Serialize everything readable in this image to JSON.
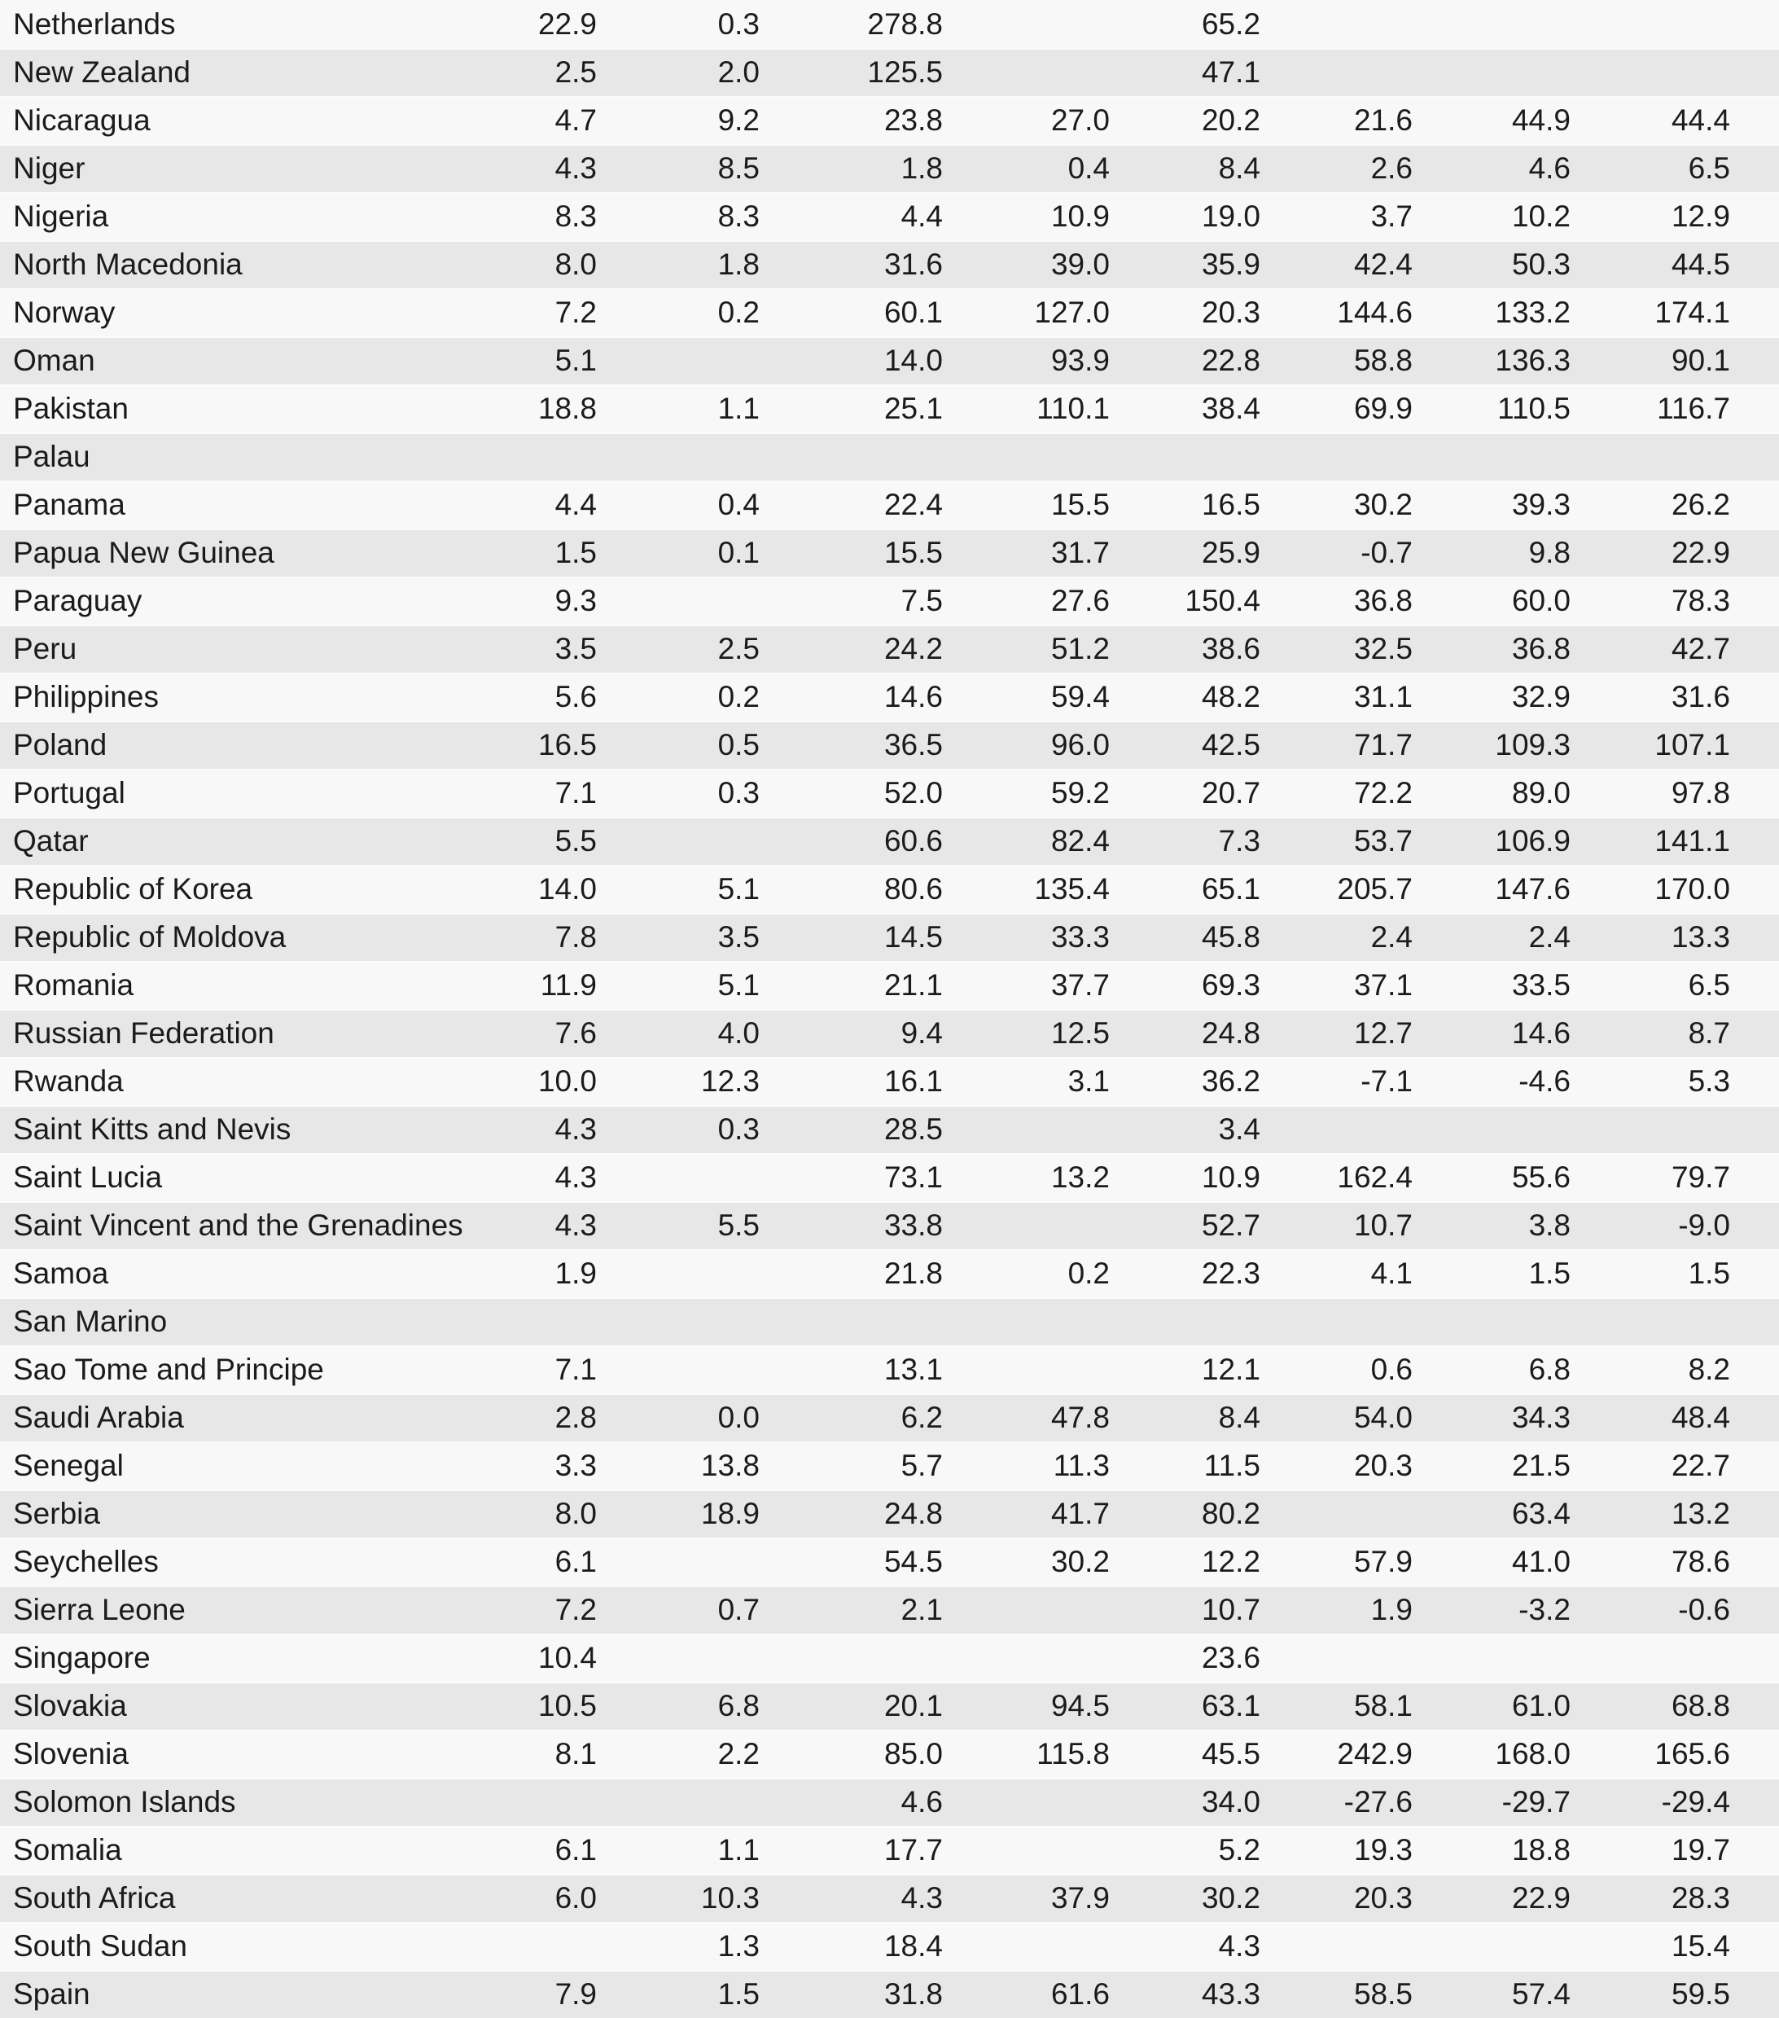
{
  "colors": {
    "row_light": "#f8f8f8",
    "row_gray": "#e7e7e7",
    "separator": "#fbfbfb",
    "text": "#1b1b1b",
    "background": "#ffffff"
  },
  "table": {
    "columns": 8,
    "rows": [
      {
        "country": "Netherlands",
        "values": [
          "22.9",
          "0.3",
          "278.8",
          "",
          "65.2",
          "",
          "",
          ""
        ]
      },
      {
        "country": "New Zealand",
        "values": [
          "2.5",
          "2.0",
          "125.5",
          "",
          "47.1",
          "",
          "",
          ""
        ]
      },
      {
        "country": "Nicaragua",
        "values": [
          "4.7",
          "9.2",
          "23.8",
          "27.0",
          "20.2",
          "21.6",
          "44.9",
          "44.4"
        ]
      },
      {
        "country": "Niger",
        "values": [
          "4.3",
          "8.5",
          "1.8",
          "0.4",
          "8.4",
          "2.6",
          "4.6",
          "6.5"
        ]
      },
      {
        "country": "Nigeria",
        "values": [
          "8.3",
          "8.3",
          "4.4",
          "10.9",
          "19.0",
          "3.7",
          "10.2",
          "12.9"
        ]
      },
      {
        "country": "North Macedonia",
        "values": [
          "8.0",
          "1.8",
          "31.6",
          "39.0",
          "35.9",
          "42.4",
          "50.3",
          "44.5"
        ]
      },
      {
        "country": "Norway",
        "values": [
          "7.2",
          "0.2",
          "60.1",
          "127.0",
          "20.3",
          "144.6",
          "133.2",
          "174.1"
        ]
      },
      {
        "country": "Oman",
        "values": [
          "5.1",
          "",
          "14.0",
          "93.9",
          "22.8",
          "58.8",
          "136.3",
          "90.1"
        ]
      },
      {
        "country": "Pakistan",
        "values": [
          "18.8",
          "1.1",
          "25.1",
          "110.1",
          "38.4",
          "69.9",
          "110.5",
          "116.7"
        ]
      },
      {
        "country": "Palau",
        "values": [
          "",
          "",
          "",
          "",
          "",
          "",
          "",
          ""
        ]
      },
      {
        "country": "Panama",
        "values": [
          "4.4",
          "0.4",
          "22.4",
          "15.5",
          "16.5",
          "30.2",
          "39.3",
          "26.2"
        ]
      },
      {
        "country": "Papua New Guinea",
        "values": [
          "1.5",
          "0.1",
          "15.5",
          "31.7",
          "25.9",
          "-0.7",
          "9.8",
          "22.9"
        ]
      },
      {
        "country": "Paraguay",
        "values": [
          "9.3",
          "",
          "7.5",
          "27.6",
          "150.4",
          "36.8",
          "60.0",
          "78.3"
        ]
      },
      {
        "country": "Peru",
        "values": [
          "3.5",
          "2.5",
          "24.2",
          "51.2",
          "38.6",
          "32.5",
          "36.8",
          "42.7"
        ]
      },
      {
        "country": "Philippines",
        "values": [
          "5.6",
          "0.2",
          "14.6",
          "59.4",
          "48.2",
          "31.1",
          "32.9",
          "31.6"
        ]
      },
      {
        "country": "Poland",
        "values": [
          "16.5",
          "0.5",
          "36.5",
          "96.0",
          "42.5",
          "71.7",
          "109.3",
          "107.1"
        ]
      },
      {
        "country": "Portugal",
        "values": [
          "7.1",
          "0.3",
          "52.0",
          "59.2",
          "20.7",
          "72.2",
          "89.0",
          "97.8"
        ]
      },
      {
        "country": "Qatar",
        "values": [
          "5.5",
          "",
          "60.6",
          "82.4",
          "7.3",
          "53.7",
          "106.9",
          "141.1"
        ]
      },
      {
        "country": "Republic of Korea",
        "values": [
          "14.0",
          "5.1",
          "80.6",
          "135.4",
          "65.1",
          "205.7",
          "147.6",
          "170.0"
        ]
      },
      {
        "country": "Republic of Moldova",
        "values": [
          "7.8",
          "3.5",
          "14.5",
          "33.3",
          "45.8",
          "2.4",
          "2.4",
          "13.3"
        ]
      },
      {
        "country": "Romania",
        "values": [
          "11.9",
          "5.1",
          "21.1",
          "37.7",
          "69.3",
          "37.1",
          "33.5",
          "6.5"
        ]
      },
      {
        "country": "Russian Federation",
        "values": [
          "7.6",
          "4.0",
          "9.4",
          "12.5",
          "24.8",
          "12.7",
          "14.6",
          "8.7"
        ]
      },
      {
        "country": "Rwanda",
        "values": [
          "10.0",
          "12.3",
          "16.1",
          "3.1",
          "36.2",
          "-7.1",
          "-4.6",
          "5.3"
        ]
      },
      {
        "country": "Saint Kitts and Nevis",
        "values": [
          "4.3",
          "0.3",
          "28.5",
          "",
          "3.4",
          "",
          "",
          ""
        ]
      },
      {
        "country": "Saint Lucia",
        "values": [
          "4.3",
          "",
          "73.1",
          "13.2",
          "10.9",
          "162.4",
          "55.6",
          "79.7"
        ]
      },
      {
        "country": "Saint Vincent and the Grenadines",
        "values": [
          "4.3",
          "5.5",
          "33.8",
          "",
          "52.7",
          "10.7",
          "3.8",
          "-9.0"
        ]
      },
      {
        "country": "Samoa",
        "values": [
          "1.9",
          "",
          "21.8",
          "0.2",
          "22.3",
          "4.1",
          "1.5",
          "1.5"
        ]
      },
      {
        "country": "San Marino",
        "values": [
          "",
          "",
          "",
          "",
          "",
          "",
          "",
          ""
        ]
      },
      {
        "country": "Sao Tome and Principe",
        "values": [
          "7.1",
          "",
          "13.1",
          "",
          "12.1",
          "0.6",
          "6.8",
          "8.2"
        ]
      },
      {
        "country": "Saudi Arabia",
        "values": [
          "2.8",
          "0.0",
          "6.2",
          "47.8",
          "8.4",
          "54.0",
          "34.3",
          "48.4"
        ]
      },
      {
        "country": "Senegal",
        "values": [
          "3.3",
          "13.8",
          "5.7",
          "11.3",
          "11.5",
          "20.3",
          "21.5",
          "22.7"
        ]
      },
      {
        "country": "Serbia",
        "values": [
          "8.0",
          "18.9",
          "24.8",
          "41.7",
          "80.2",
          "",
          "63.4",
          "13.2"
        ]
      },
      {
        "country": "Seychelles",
        "values": [
          "6.1",
          "",
          "54.5",
          "30.2",
          "12.2",
          "57.9",
          "41.0",
          "78.6"
        ]
      },
      {
        "country": "Sierra Leone",
        "values": [
          "7.2",
          "0.7",
          "2.1",
          "",
          "10.7",
          "1.9",
          "-3.2",
          "-0.6"
        ]
      },
      {
        "country": "Singapore",
        "values": [
          "10.4",
          "",
          "",
          "",
          "23.6",
          "",
          "",
          ""
        ]
      },
      {
        "country": "Slovakia",
        "values": [
          "10.5",
          "6.8",
          "20.1",
          "94.5",
          "63.1",
          "58.1",
          "61.0",
          "68.8"
        ]
      },
      {
        "country": "Slovenia",
        "values": [
          "8.1",
          "2.2",
          "85.0",
          "115.8",
          "45.5",
          "242.9",
          "168.0",
          "165.6"
        ]
      },
      {
        "country": "Solomon Islands",
        "values": [
          "",
          "",
          "4.6",
          "",
          "34.0",
          "-27.6",
          "-29.7",
          "-29.4"
        ]
      },
      {
        "country": "Somalia",
        "values": [
          "6.1",
          "1.1",
          "17.7",
          "",
          "5.2",
          "19.3",
          "18.8",
          "19.7"
        ]
      },
      {
        "country": "South Africa",
        "values": [
          "6.0",
          "10.3",
          "4.3",
          "37.9",
          "30.2",
          "20.3",
          "22.9",
          "28.3"
        ]
      },
      {
        "country": "South Sudan",
        "values": [
          "",
          "1.3",
          "18.4",
          "",
          "4.3",
          "",
          "",
          "15.4"
        ]
      },
      {
        "country": "Spain",
        "values": [
          "7.9",
          "1.5",
          "31.8",
          "61.6",
          "43.3",
          "58.5",
          "57.4",
          "59.5"
        ]
      }
    ]
  }
}
